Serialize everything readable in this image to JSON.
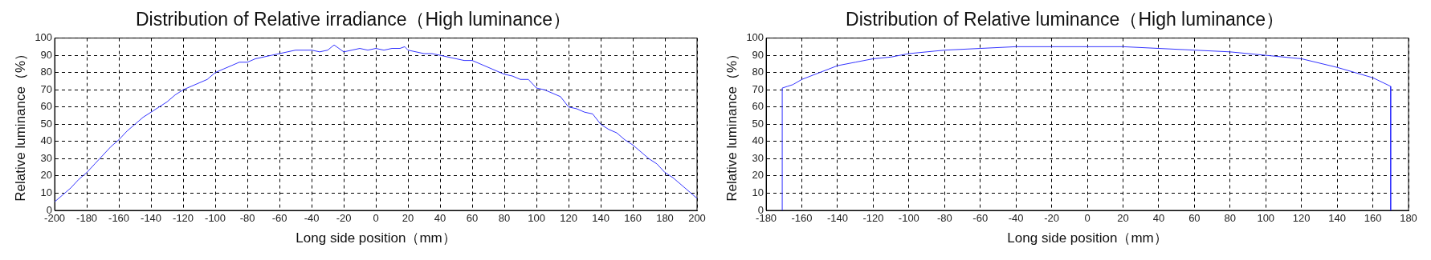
{
  "chart_data": [
    {
      "type": "line",
      "title": "Distribution of Relative irradiance（High luminance）",
      "xlabel": "Long side position（mm）",
      "ylabel": "Relative luminance（%）",
      "xlim": [
        -200,
        200
      ],
      "xticks": [
        -200,
        -180,
        -160,
        -140,
        -120,
        -100,
        -80,
        -60,
        -40,
        -20,
        0,
        20,
        40,
        60,
        80,
        100,
        120,
        140,
        160,
        180,
        200
      ],
      "ylim": [
        0,
        100
      ],
      "yticks": [
        0,
        10,
        20,
        30,
        40,
        50,
        60,
        70,
        80,
        90,
        100
      ],
      "grid": true,
      "legend": false,
      "series": [
        {
          "color": "#3333ff",
          "x": [
            -200,
            -195,
            -190,
            -185,
            -180,
            -175,
            -170,
            -165,
            -160,
            -155,
            -150,
            -145,
            -140,
            -135,
            -130,
            -125,
            -120,
            -115,
            -110,
            -105,
            -100,
            -95,
            -90,
            -85,
            -80,
            -75,
            -70,
            -65,
            -60,
            -55,
            -50,
            -45,
            -40,
            -35,
            -30,
            -26,
            -20,
            -15,
            -10,
            -5,
            0,
            5,
            10,
            15,
            18,
            20,
            25,
            30,
            35,
            40,
            45,
            50,
            55,
            60,
            65,
            70,
            75,
            80,
            85,
            90,
            95,
            100,
            105,
            110,
            115,
            120,
            125,
            130,
            135,
            140,
            145,
            150,
            155,
            160,
            165,
            170,
            175,
            180,
            185,
            190,
            195,
            200
          ],
          "values": [
            5,
            9,
            13,
            18,
            22,
            27,
            32,
            37,
            41,
            46,
            50,
            54,
            57,
            60,
            63,
            67,
            70,
            72,
            74,
            76,
            80,
            82,
            84,
            86,
            86,
            88,
            89,
            90,
            91,
            92,
            93,
            93,
            93,
            92,
            93,
            96,
            92,
            93,
            94,
            93,
            94,
            93,
            94,
            94,
            95,
            93,
            92,
            91,
            91,
            90,
            89,
            88,
            87,
            87,
            85,
            83,
            81,
            79,
            78,
            76,
            76,
            71,
            70,
            68,
            66,
            60,
            59,
            57,
            56,
            50,
            47,
            45,
            41,
            38,
            34,
            30,
            27,
            22,
            19,
            15,
            11,
            7
          ]
        }
      ]
    },
    {
      "type": "line",
      "title": "Distribution of Relative luminance（High luminance）",
      "xlabel": "Long side position（mm）",
      "ylabel": "Relative luminance（%）",
      "xlim": [
        -180,
        180
      ],
      "xticks": [
        -180,
        -160,
        -140,
        -120,
        -100,
        -80,
        -60,
        -40,
        -20,
        0,
        20,
        40,
        60,
        80,
        100,
        120,
        140,
        160,
        180
      ],
      "ylim": [
        0,
        100
      ],
      "yticks": [
        0,
        10,
        20,
        30,
        40,
        50,
        60,
        70,
        80,
        90,
        100
      ],
      "grid": true,
      "legend": false,
      "series": [
        {
          "color": "#3333ff",
          "x": [
            -171,
            -171,
            -168,
            -165,
            -160,
            -150,
            -140,
            -130,
            -120,
            -110,
            -100,
            -90,
            -80,
            -60,
            -40,
            -20,
            0,
            20,
            40,
            60,
            80,
            100,
            120,
            140,
            150,
            160,
            170,
            170
          ],
          "values": [
            0,
            71,
            72,
            73,
            76,
            80,
            84,
            86,
            88,
            89,
            91,
            92,
            93,
            94,
            95,
            95,
            95,
            95,
            94,
            93,
            92,
            90,
            88,
            83,
            80,
            77,
            72,
            0
          ]
        }
      ]
    }
  ]
}
